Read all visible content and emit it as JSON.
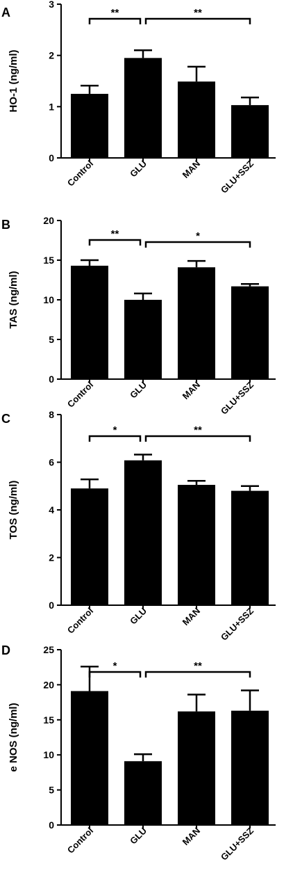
{
  "chart_data": [
    {
      "type": "bar",
      "panel": "A",
      "ylabel": "HO-1 (ng/ml)",
      "categories": [
        "Control",
        "GLU",
        "MAN",
        "GLU+SSZ"
      ],
      "values": [
        1.25,
        1.95,
        1.49,
        1.03
      ],
      "errors": [
        0.16,
        0.15,
        0.29,
        0.15
      ],
      "ylim": [
        0,
        3
      ],
      "yticks": [
        "0",
        "1",
        "2",
        "3"
      ],
      "significance": [
        {
          "from": 0,
          "to": 1,
          "label": "**"
        },
        {
          "from": 1,
          "to": 3,
          "label": "**"
        }
      ]
    },
    {
      "type": "bar",
      "panel": "B",
      "ylabel": "TAS (ng/ml)",
      "categories": [
        "Control",
        "GLU",
        "MAN",
        "GLU+SSZ"
      ],
      "values": [
        14.3,
        10.0,
        14.1,
        11.7
      ],
      "errors": [
        0.7,
        0.8,
        0.8,
        0.3
      ],
      "ylim": [
        0,
        20
      ],
      "yticks": [
        "0",
        "5",
        "10",
        "15",
        "20"
      ],
      "significance": [
        {
          "from": 0,
          "to": 1,
          "label": "**"
        },
        {
          "from": 1,
          "to": 3,
          "label": "*"
        }
      ]
    },
    {
      "type": "bar",
      "panel": "C",
      "ylabel": "TOS (ng/ml)",
      "categories": [
        "Control",
        "GLU",
        "MAN",
        "GLU+SSZ"
      ],
      "values": [
        4.9,
        6.08,
        5.05,
        4.8
      ],
      "errors": [
        0.38,
        0.24,
        0.17,
        0.2
      ],
      "ylim": [
        0,
        8
      ],
      "yticks": [
        "0",
        "2",
        "4",
        "6",
        "8"
      ],
      "significance": [
        {
          "from": 0,
          "to": 1,
          "label": "*"
        },
        {
          "from": 1,
          "to": 3,
          "label": "**"
        }
      ]
    },
    {
      "type": "bar",
      "panel": "D",
      "ylabel": "e NOS (ng/ml)",
      "categories": [
        "Control",
        "GLU",
        "MAN",
        "GLU+SSZ"
      ],
      "values": [
        19.1,
        9.1,
        16.2,
        16.3
      ],
      "errors": [
        3.5,
        1.0,
        2.4,
        2.9
      ],
      "ylim": [
        0,
        25
      ],
      "yticks": [
        "0",
        "5",
        "10",
        "15",
        "20",
        "25"
      ],
      "significance": [
        {
          "from": 0,
          "to": 1,
          "label": "*"
        },
        {
          "from": 1,
          "to": 3,
          "label": "**"
        }
      ]
    }
  ]
}
